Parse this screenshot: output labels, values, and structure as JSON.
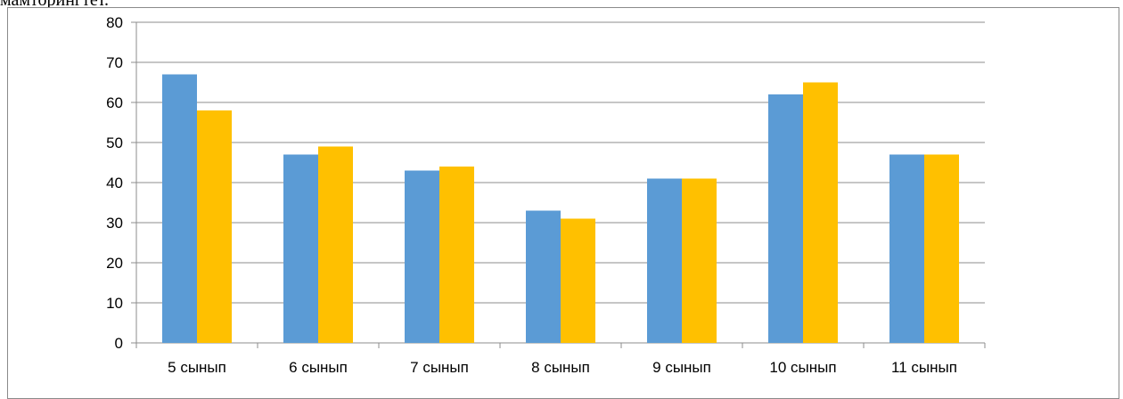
{
  "document": {
    "text_fragment": "мамторингтет."
  },
  "chart_data": {
    "type": "bar",
    "categories": [
      "5 сынып",
      "6 сынып",
      "7 сынып",
      "8 сынып",
      "9 сынып",
      "10 сынып",
      "11 сынып"
    ],
    "series": [
      {
        "values": [
          67,
          47,
          43,
          33,
          41,
          62,
          47
        ],
        "color": "#5b9bd5"
      },
      {
        "values": [
          58,
          49,
          44,
          31,
          41,
          65,
          47
        ],
        "color": "#ffc000"
      }
    ],
    "ylim": [
      0,
      80
    ],
    "yticks": [
      0,
      10,
      20,
      30,
      40,
      50,
      60,
      70,
      80
    ],
    "title": "",
    "xlabel": "",
    "ylabel": "",
    "grid": true,
    "legend": "none",
    "gridline_color": "#8c8c8c"
  }
}
